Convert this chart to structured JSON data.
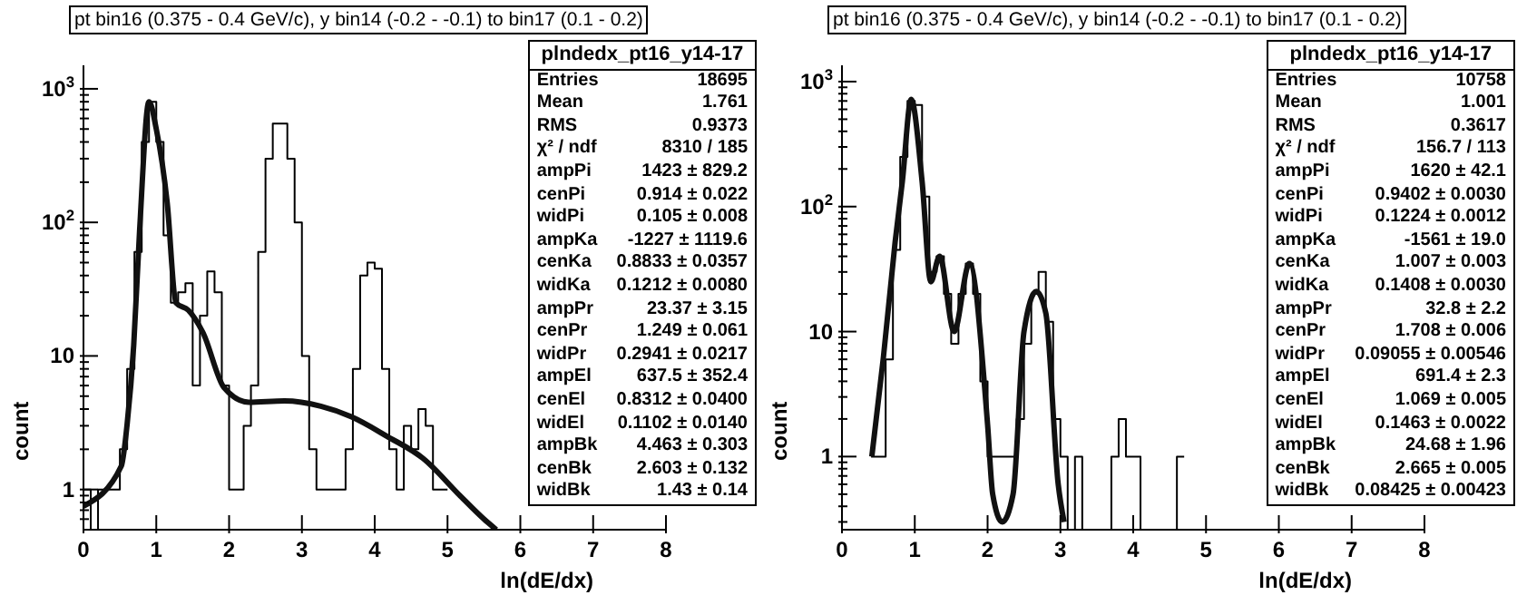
{
  "chart_data": [
    {
      "type": "histogram",
      "title": "pt bin16 (0.375 - 0.4 GeV/c), y bin14 (-0.2 - -0.1) to bin17 (0.1 - 0.2)",
      "xlabel": "ln(dE/dx)",
      "ylabel": "count",
      "log": "y",
      "xlim": [
        0,
        8
      ],
      "xticks": [
        0,
        1,
        2,
        3,
        4,
        5,
        6,
        7,
        8
      ],
      "ylim": [
        0.5,
        1500
      ],
      "yticks": [
        {
          "value": 0.6,
          "label": null
        },
        {
          "value": 0.7,
          "label": null
        },
        {
          "value": 0.8,
          "label": null
        },
        {
          "value": 0.9,
          "label": null
        },
        {
          "value": 1,
          "label": "1"
        },
        {
          "value": 2,
          "label": null
        },
        {
          "value": 3,
          "label": null
        },
        {
          "value": 4,
          "label": null
        },
        {
          "value": 5,
          "label": null
        },
        {
          "value": 6,
          "label": null
        },
        {
          "value": 7,
          "label": null
        },
        {
          "value": 8,
          "label": null
        },
        {
          "value": 9,
          "label": null
        },
        {
          "value": 10,
          "label": "10"
        },
        {
          "value": 20,
          "label": null
        },
        {
          "value": 30,
          "label": null
        },
        {
          "value": 40,
          "label": null
        },
        {
          "value": 50,
          "label": null
        },
        {
          "value": 60,
          "label": null
        },
        {
          "value": 70,
          "label": null
        },
        {
          "value": 80,
          "label": null
        },
        {
          "value": 90,
          "label": null
        },
        {
          "value": 100,
          "label": "10$^{2}$"
        },
        {
          "value": 200,
          "label": null
        },
        {
          "value": 300,
          "label": null
        },
        {
          "value": 400,
          "label": null
        },
        {
          "value": 500,
          "label": null
        },
        {
          "value": 600,
          "label": null
        },
        {
          "value": 700,
          "label": null
        },
        {
          "value": 800,
          "label": null
        },
        {
          "value": 900,
          "label": null
        },
        {
          "value": 1000,
          "label": "10$^{3}$"
        }
      ],
      "series": [
        {
          "type": "histogram",
          "color": "#000000",
          "bins": [
            0,
            0.1,
            0.2,
            0.3,
            0.4,
            0.5,
            0.6,
            0.7,
            0.8,
            0.9,
            1.0,
            1.1,
            1.2,
            1.3,
            1.4,
            1.5,
            1.6,
            1.7,
            1.8,
            1.9,
            2.0,
            2.1,
            2.2,
            2.3,
            2.4,
            2.5,
            2.6,
            2.7,
            2.8,
            2.9,
            3.0,
            3.1,
            3.2,
            3.3,
            3.4,
            3.5,
            3.6,
            3.7,
            3.8,
            3.9,
            4.0,
            4.1,
            4.2,
            4.3,
            4.4,
            4.5,
            4.6,
            4.7,
            4.8,
            4.9,
            5.0
          ],
          "values": [
            1,
            null,
            1,
            1,
            1,
            2,
            8,
            60,
            400,
            800,
            400,
            80,
            25,
            30,
            35,
            6,
            20,
            43,
            30,
            6,
            1,
            1,
            3,
            6,
            60,
            300,
            550,
            550,
            300,
            100,
            10,
            2,
            1,
            1,
            1,
            1,
            2,
            8,
            40,
            50,
            45,
            8,
            2,
            1,
            3,
            2,
            4,
            3,
            1,
            1
          ]
        },
        {
          "type": "line",
          "color": "#111111",
          "x": [
            0,
            0.52,
            0.6,
            0.69,
            0.77,
            0.9,
            1.0,
            1.15,
            1.27,
            1.44,
            1.64,
            1.93,
            2.27,
            2.76,
            3.26,
            3.68,
            4.17,
            4.67,
            5.17,
            5.5,
            5.67
          ],
          "values": [
            0.75,
            1.5,
            3.1,
            12,
            85,
            800,
            500,
            140,
            25,
            22,
            15,
            5.8,
            4.5,
            4.6,
            4.2,
            3.5,
            2.5,
            1.7,
            0.9,
            0.6,
            0.5
          ]
        }
      ],
      "annotations": [
        "plndedx_pt16_y14-17",
        "Entries",
        "18695",
        "Mean",
        "1.761",
        "RMS",
        "0.9373",
        "χ² / ndf",
        "8310 / 185",
        "ampPi",
        "1423 ± 829.2",
        "cenPi",
        "0.914 ± 0.022",
        "widPi",
        "0.105 ± 0.008",
        "ampKa",
        "-1227 ± 1119.6",
        "cenKa",
        "0.8833 ± 0.0357",
        "widKa",
        "0.1212 ± 0.0080",
        "ampPr",
        "23.37 ± 3.15",
        "cenPr",
        "1.249 ± 0.061",
        "widPr",
        "0.2941 ± 0.0217",
        "ampEl",
        "637.5 ± 352.4",
        "cenEl",
        "0.8312 ± 0.0400",
        "widEl",
        "0.1102 ± 0.0140",
        "ampBk",
        "4.463 ± 0.303",
        "cenBk",
        "2.603 ± 0.132",
        "widBk",
        "1.43 ± 0.14"
      ]
    },
    {
      "type": "histogram",
      "title": "pt bin16 (0.375 - 0.4 GeV/c), y bin14 (-0.2 - -0.1) to bin17 (0.1 - 0.2)",
      "xlabel": "ln(dE/dx)",
      "ylabel": "count",
      "log": "y",
      "xlim": [
        0,
        8
      ],
      "xticks": [
        0,
        1,
        2,
        3,
        4,
        5,
        6,
        7,
        8
      ],
      "ylim": [
        0.26,
        1350
      ],
      "yticks": [
        {
          "value": 0.3,
          "label": null
        },
        {
          "value": 0.4,
          "label": null
        },
        {
          "value": 0.5,
          "label": null
        },
        {
          "value": 0.6,
          "label": null
        },
        {
          "value": 0.7,
          "label": null
        },
        {
          "value": 0.8,
          "label": null
        },
        {
          "value": 0.9,
          "label": null
        },
        {
          "value": 1,
          "label": "1"
        },
        {
          "value": 2,
          "label": null
        },
        {
          "value": 3,
          "label": null
        },
        {
          "value": 4,
          "label": null
        },
        {
          "value": 5,
          "label": null
        },
        {
          "value": 6,
          "label": null
        },
        {
          "value": 7,
          "label": null
        },
        {
          "value": 8,
          "label": null
        },
        {
          "value": 9,
          "label": null
        },
        {
          "value": 10,
          "label": "10"
        },
        {
          "value": 20,
          "label": null
        },
        {
          "value": 30,
          "label": null
        },
        {
          "value": 40,
          "label": null
        },
        {
          "value": 50,
          "label": null
        },
        {
          "value": 60,
          "label": null
        },
        {
          "value": 70,
          "label": null
        },
        {
          "value": 80,
          "label": null
        },
        {
          "value": 90,
          "label": null
        },
        {
          "value": 100,
          "label": "10$^{2}$"
        },
        {
          "value": 200,
          "label": null
        },
        {
          "value": 300,
          "label": null
        },
        {
          "value": 400,
          "label": null
        },
        {
          "value": 500,
          "label": null
        },
        {
          "value": 600,
          "label": null
        },
        {
          "value": 700,
          "label": null
        },
        {
          "value": 800,
          "label": null
        },
        {
          "value": 900,
          "label": null
        },
        {
          "value": 1000,
          "label": "10$^{3}$"
        }
      ],
      "series": [
        {
          "type": "histogram",
          "color": "#000000",
          "bins": [
            0.4,
            0.5,
            0.6,
            0.7,
            0.8,
            0.9,
            1.0,
            1.1,
            1.2,
            1.3,
            1.4,
            1.5,
            1.6,
            1.7,
            1.8,
            1.9,
            2.0,
            2.1,
            2.2,
            2.3,
            2.4,
            2.5,
            2.6,
            2.7,
            2.8,
            2.9,
            3.0,
            3.1,
            3.2,
            3.3,
            3.4,
            3.5,
            3.6,
            3.7,
            3.8,
            3.9,
            4.0,
            4.1,
            4.2,
            4.3,
            4.4,
            4.5,
            4.6,
            4.7
          ],
          "values": [
            1,
            1,
            6,
            45,
            250,
            700,
            650,
            120,
            30,
            40,
            20,
            8,
            20,
            35,
            20,
            4,
            1,
            1,
            1,
            1,
            2,
            8,
            20,
            30,
            12,
            2,
            1,
            null,
            1,
            null,
            null,
            null,
            null,
            1,
            2,
            1,
            1,
            null,
            null,
            null,
            null,
            null,
            1
          ]
        },
        {
          "type": "line",
          "color": "#111111",
          "x": [
            0.41,
            0.57,
            0.73,
            0.83,
            0.95,
            1.1,
            1.22,
            1.34,
            1.54,
            1.75,
            2.0,
            2.07,
            2.2,
            2.35,
            2.5,
            2.67,
            2.8,
            2.97,
            3.05
          ],
          "values": [
            1,
            6.3,
            52,
            160,
            720,
            160,
            25,
            40,
            10,
            35,
            1.8,
            0.5,
            0.3,
            0.5,
            10,
            21,
            14,
            0.6,
            0.3
          ]
        }
      ],
      "annotations": [
        "plndedx_pt16_y14-17",
        "Entries",
        "10758",
        "Mean",
        "1.001",
        "RMS",
        "0.3617",
        "χ² / ndf",
        "156.7 / 113",
        "ampPi",
        "1620 ± 42.1",
        "cenPi",
        "0.9402 ± 0.0030",
        "widPi",
        "0.1224 ± 0.0012",
        "ampKa",
        "-1561 ± 19.0",
        "cenKa",
        "1.007 ± 0.003",
        "widKa",
        "0.1408 ± 0.0030",
        "ampPr",
        "32.8 ± 2.2",
        "cenPr",
        "1.708 ± 0.006",
        "widPr",
        "0.09055 ± 0.00546",
        "ampEl",
        "691.4 ± 2.3",
        "cenEl",
        "1.069 ± 0.005",
        "widEl",
        "0.1463 ± 0.0022",
        "ampBk",
        "24.68 ± 1.96",
        "cenBk",
        "2.665 ± 0.005",
        "widBk",
        "0.08425 ± 0.00423"
      ]
    }
  ]
}
